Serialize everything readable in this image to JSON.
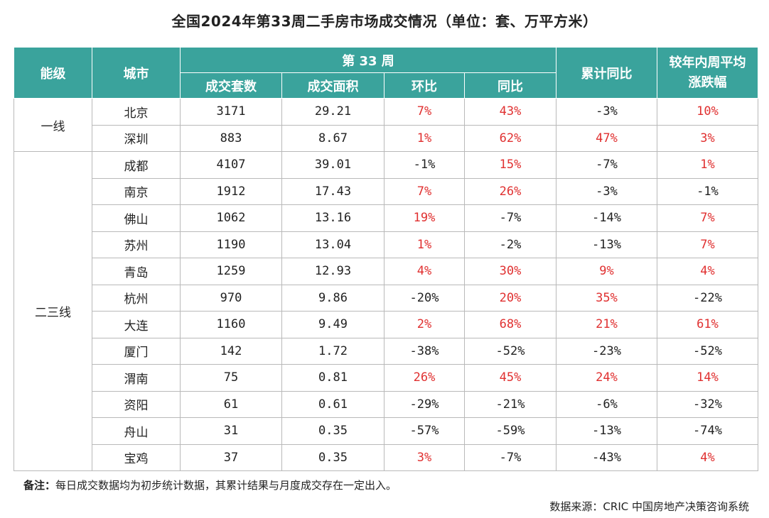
{
  "title": "全国2024年第33周二手房市场成交情况（单位：套、万平方米）",
  "headers": {
    "tier": "能级",
    "city": "城市",
    "week": "第 33 周",
    "units": "成交套数",
    "area": "成交面积",
    "mom": "环比",
    "yoy": "同比",
    "cum_yoy": "累计同比",
    "vs_avg": "较年内周平均涨跌幅"
  },
  "tiers": [
    {
      "label": "一线",
      "rows": [
        {
          "city": "北京",
          "units": "3171",
          "area": "29.21",
          "mom": "7%",
          "yoy": "43%",
          "cum": "-3%",
          "avg": "10%"
        },
        {
          "city": "深圳",
          "units": "883",
          "area": "8.67",
          "mom": "1%",
          "yoy": "62%",
          "cum": "47%",
          "avg": "3%"
        }
      ]
    },
    {
      "label": "二三线",
      "rows": [
        {
          "city": "成都",
          "units": "4107",
          "area": "39.01",
          "mom": "-1%",
          "yoy": "15%",
          "cum": "-7%",
          "avg": "1%"
        },
        {
          "city": "南京",
          "units": "1912",
          "area": "17.43",
          "mom": "7%",
          "yoy": "26%",
          "cum": "-3%",
          "avg": "-1%"
        },
        {
          "city": "佛山",
          "units": "1062",
          "area": "13.16",
          "mom": "19%",
          "yoy": "-7%",
          "cum": "-14%",
          "avg": "7%"
        },
        {
          "city": "苏州",
          "units": "1190",
          "area": "13.04",
          "mom": "1%",
          "yoy": "-2%",
          "cum": "-13%",
          "avg": "7%"
        },
        {
          "city": "青岛",
          "units": "1259",
          "area": "12.93",
          "mom": "4%",
          "yoy": "30%",
          "cum": "9%",
          "avg": "4%"
        },
        {
          "city": "杭州",
          "units": "970",
          "area": "9.86",
          "mom": "-20%",
          "yoy": "20%",
          "cum": "35%",
          "avg": "-22%"
        },
        {
          "city": "大连",
          "units": "1160",
          "area": "9.49",
          "mom": "2%",
          "yoy": "68%",
          "cum": "21%",
          "avg": "61%"
        },
        {
          "city": "厦门",
          "units": "142",
          "area": "1.72",
          "mom": "-38%",
          "yoy": "-52%",
          "cum": "-23%",
          "avg": "-52%"
        },
        {
          "city": "渭南",
          "units": "75",
          "area": "0.81",
          "mom": "26%",
          "yoy": "45%",
          "cum": "24%",
          "avg": "14%"
        },
        {
          "city": "资阳",
          "units": "61",
          "area": "0.61",
          "mom": "-29%",
          "yoy": "-21%",
          "cum": "-6%",
          "avg": "-32%"
        },
        {
          "city": "舟山",
          "units": "31",
          "area": "0.35",
          "mom": "-57%",
          "yoy": "-59%",
          "cum": "-13%",
          "avg": "-74%"
        },
        {
          "city": "宝鸡",
          "units": "37",
          "area": "0.35",
          "mom": "3%",
          "yoy": "-7%",
          "cum": "-43%",
          "avg": "4%"
        }
      ]
    }
  ],
  "note_label": "备注：",
  "note_text": "每日成交数据均为初步统计数据，其累计结果与月度成交存在一定出入。",
  "source": "数据来源：CRIC 中国房地产决策咨询系统",
  "colors": {
    "header_bg": "#3aa39c",
    "positive": "#e03030",
    "text": "#222222"
  }
}
